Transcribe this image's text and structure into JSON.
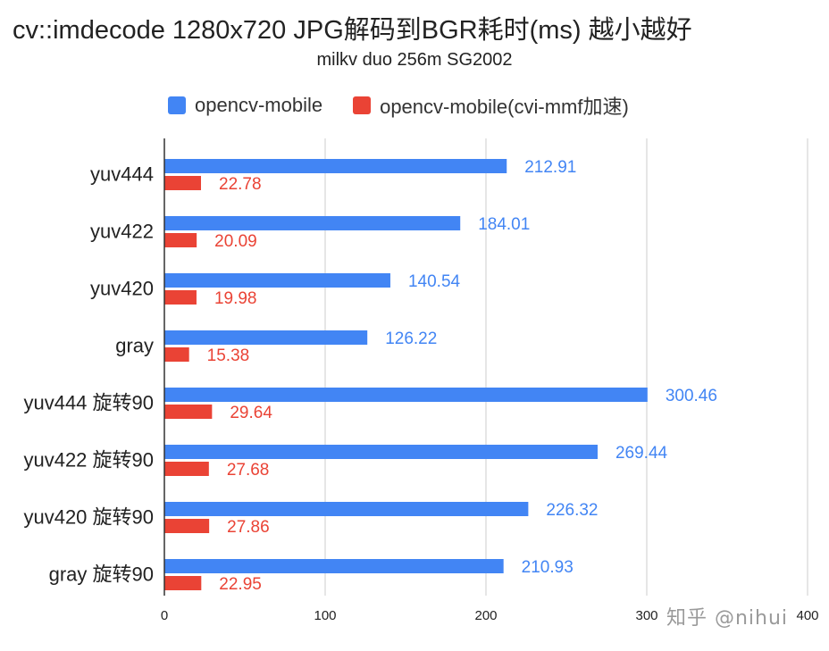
{
  "colors": {
    "series_1": "#4285f4",
    "series_2": "#ea4335",
    "grid": "#cccccc",
    "axis": "#333333"
  },
  "watermark": "知乎 @nihui",
  "chart_data": {
    "type": "bar",
    "orientation": "horizontal",
    "title": "cv::imdecode 1280x720 JPG解码到BGR耗时(ms) 越小越好",
    "subtitle": "milkv duo 256m SG2002",
    "categories": [
      "yuv444",
      "yuv422",
      "yuv420",
      "gray",
      "yuv444 旋转90",
      "yuv422 旋转90",
      "yuv420 旋转90",
      "gray 旋转90"
    ],
    "series": [
      {
        "name": "opencv-mobile",
        "color": "#4285f4",
        "values": [
          212.91,
          184.01,
          140.54,
          126.22,
          300.46,
          269.44,
          226.32,
          210.93
        ]
      },
      {
        "name": "opencv-mobile(cvi-mmf加速)",
        "color": "#ea4335",
        "values": [
          22.78,
          20.09,
          19.98,
          15.38,
          29.64,
          27.68,
          27.86,
          22.95
        ]
      }
    ],
    "xlim": [
      0,
      400
    ],
    "xticks": [
      "0",
      "100",
      "200",
      "300",
      "400"
    ],
    "xlabel": "",
    "ylabel": "",
    "grid": true,
    "legend_position": "top",
    "data_labels": true
  }
}
